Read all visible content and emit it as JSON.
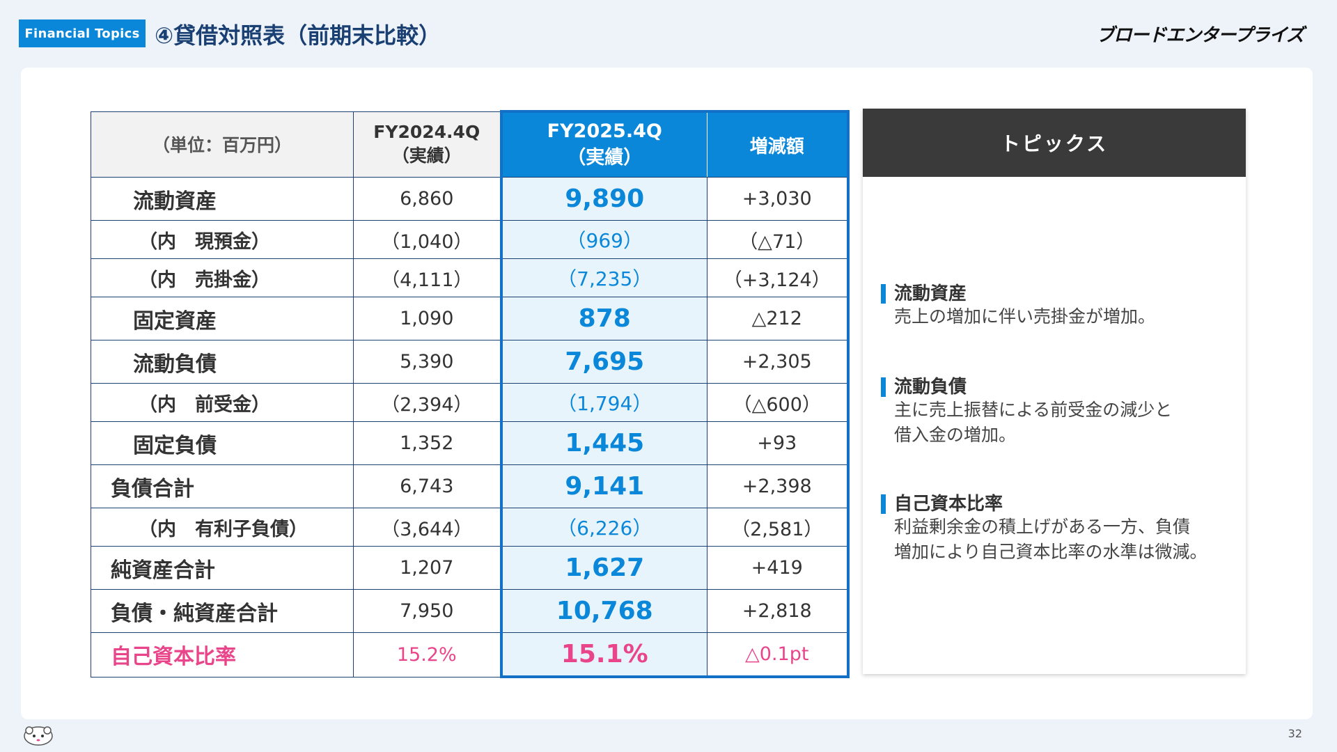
{
  "header": {
    "tag": "Financial Topics",
    "title": "④貸借対照表（前期末比較）",
    "logo": "ブロードエンタープライズ"
  },
  "table": {
    "unit": "（単位：百万円）",
    "col_prev_l1": "FY2024.4Q",
    "col_prev_l2": "（実績）",
    "col_cur_l1": "FY2025.4Q",
    "col_cur_l2": "（実績）",
    "col_diff": "増減額",
    "rows": [
      {
        "label": "流動資産",
        "prev": "6,860",
        "cur": "9,890",
        "diff": "+3,030"
      },
      {
        "label": "（内　現預金）",
        "prev": "（1,040）",
        "cur": "（969）",
        "diff": "（△71）"
      },
      {
        "label": "（内　売掛金）",
        "prev": "（4,111）",
        "cur": "（7,235）",
        "diff": "（+3,124）"
      },
      {
        "label": "固定資産",
        "prev": "1,090",
        "cur": "878",
        "diff": "△212"
      },
      {
        "label": "流動負債",
        "prev": "5,390",
        "cur": "7,695",
        "diff": "+2,305"
      },
      {
        "label": "（内　前受金）",
        "prev": "（2,394）",
        "cur": "（1,794）",
        "diff": "（△600）"
      },
      {
        "label": "固定負債",
        "prev": "1,352",
        "cur": "1,445",
        "diff": "+93"
      },
      {
        "label": "負債合計",
        "prev": "6,743",
        "cur": "9,141",
        "diff": "+2,398"
      },
      {
        "label": "（内　有利子負債）",
        "prev": "（3,644）",
        "cur": "（6,226）",
        "diff": "（2,581）"
      },
      {
        "label": "純資産合計",
        "prev": "1,207",
        "cur": "1,627",
        "diff": "+419"
      },
      {
        "label": "負債・純資産合計",
        "prev": "7,950",
        "cur": "10,768",
        "diff": "+2,818"
      },
      {
        "label": "自己資本比率",
        "prev": "15.2%",
        "cur": "15.1%",
        "diff": "△0.1pt"
      }
    ]
  },
  "topics": {
    "heading": "トピックス",
    "items": [
      {
        "title": "流動資産",
        "body1": "売上の増加に伴い売掛金が増加。",
        "body2": ""
      },
      {
        "title": "流動負債",
        "body1": "主に売上振替による前受金の減少と",
        "body2": "借入金の増加。"
      },
      {
        "title": "自己資本比率",
        "body1": "利益剰余金の積上げがある一方、負債",
        "body2": "増加により自己資本比率の水準は微減。"
      }
    ]
  },
  "footer": {
    "page": "32"
  },
  "colors": {
    "accent": "#0a87d8",
    "highlight_bg": "#e8f4fc",
    "pink": "#e8458a",
    "title": "#1a3f73"
  }
}
